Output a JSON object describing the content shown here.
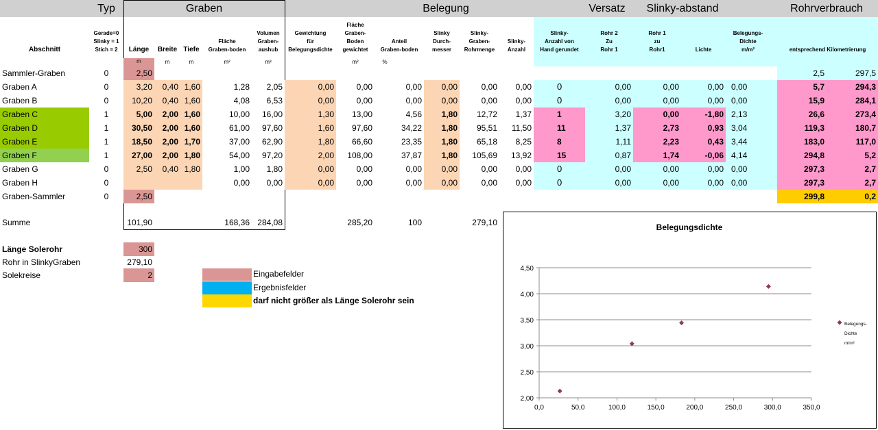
{
  "group_headers": {
    "typ": "Typ",
    "graben": "Graben",
    "belegung": "Belegung",
    "versatz": "Versatz",
    "slinky_abstand": "Slinky-abstand",
    "rohrverbrauch": "Rohrverbrauch"
  },
  "column_headers": {
    "abschnitt": "Abschnitt",
    "typ": [
      "Gerade=0",
      "Slinky = 1",
      "Stich = 2"
    ],
    "laenge": "Länge",
    "breite": "Breite",
    "tiefe": "Tiefe",
    "flaeche": [
      "Fläche",
      "Graben-boden"
    ],
    "volumen": [
      "Volumen",
      "Graben-",
      "aushub"
    ],
    "gewichtung": [
      "Gewichtung",
      "für",
      "Belegungsdichte"
    ],
    "flaeche_gew": [
      "Fläche",
      "Graben-",
      "Boden",
      "gewichtet"
    ],
    "anteil": [
      "Anteil",
      "Graben-boden"
    ],
    "durchmesser": [
      "Slinky",
      "Durch-",
      "messer"
    ],
    "rohrmenge": [
      "Slinky-",
      "Graben-",
      "Rohrmenge"
    ],
    "anzahl": [
      "Slinky-",
      "Anzahl"
    ],
    "hand": [
      "Slinky-",
      "Anzahl von",
      "Hand gerundet"
    ],
    "rohr2": [
      "Rohr 2",
      "Zu",
      "Rohr 1"
    ],
    "rohr1": [
      "Rohr 1",
      "zu",
      "Rohr1"
    ],
    "lichte": "Lichte",
    "dichte": [
      "Belegungs-",
      "Dichte",
      "m/m²"
    ],
    "kilometrierung": "entsprechend Kilometrierung"
  },
  "units": {
    "laenge": "m",
    "breite": "m",
    "tiefe": "m",
    "flaeche": "m²",
    "volumen": "m³",
    "flaeche_gew": "m²",
    "anteil": "%"
  },
  "rows": [
    {
      "name": "Sammler-Graben",
      "typ": "0",
      "laenge": "2,50",
      "breite": "",
      "tiefe": "",
      "flaeche": "",
      "volumen": "",
      "gew": "",
      "fgew": "",
      "anteil": "",
      "durch": "",
      "rohr": "",
      "anzahl": "",
      "hand": "",
      "r2": "",
      "r1": "",
      "lichte": "",
      "dichte": "",
      "km1": "2,5",
      "km2": "297,5"
    },
    {
      "name": "Graben A",
      "typ": "0",
      "laenge": "3,20",
      "breite": "0,40",
      "tiefe": "1,60",
      "flaeche": "1,28",
      "volumen": "2,05",
      "gew": "0,00",
      "fgew": "0,00",
      "anteil": "0,00",
      "durch": "0,00",
      "rohr": "0,00",
      "anzahl": "0,00",
      "hand": "0",
      "r2": "0,00",
      "r1": "0,00",
      "lichte": "0,00",
      "dichte": "0,00",
      "km1": "5,7",
      "km2": "294,3"
    },
    {
      "name": "Graben B",
      "typ": "0",
      "laenge": "10,20",
      "breite": "0,40",
      "tiefe": "1,60",
      "flaeche": "4,08",
      "volumen": "6,53",
      "gew": "0,00",
      "fgew": "0,00",
      "anteil": "0,00",
      "durch": "0,00",
      "rohr": "0,00",
      "anzahl": "0,00",
      "hand": "0",
      "r2": "0,00",
      "r1": "0,00",
      "lichte": "0,00",
      "dichte": "0,00",
      "km1": "15,9",
      "km2": "284,1"
    },
    {
      "name": "Graben C",
      "typ": "1",
      "laenge": "5,00",
      "breite": "2,00",
      "tiefe": "1,60",
      "flaeche": "10,00",
      "volumen": "16,00",
      "gew": "1,30",
      "fgew": "13,00",
      "anteil": "4,56",
      "durch": "1,80",
      "rohr": "12,72",
      "anzahl": "1,37",
      "hand": "1",
      "r2": "3,20",
      "r1": "0,00",
      "lichte": "-1,80",
      "dichte": "2,13",
      "km1": "26,6",
      "km2": "273,4"
    },
    {
      "name": "Graben D",
      "typ": "1",
      "laenge": "30,50",
      "breite": "2,00",
      "tiefe": "1,60",
      "flaeche": "61,00",
      "volumen": "97,60",
      "gew": "1,60",
      "fgew": "97,60",
      "anteil": "34,22",
      "durch": "1,80",
      "rohr": "95,51",
      "anzahl": "11,50",
      "hand": "11",
      "r2": "1,37",
      "r1": "2,73",
      "lichte": "0,93",
      "dichte": "3,04",
      "km1": "119,3",
      "km2": "180,7"
    },
    {
      "name": "Graben E",
      "typ": "1",
      "laenge": "18,50",
      "breite": "2,00",
      "tiefe": "1,70",
      "flaeche": "37,00",
      "volumen": "62,90",
      "gew": "1,80",
      "fgew": "66,60",
      "anteil": "23,35",
      "durch": "1,80",
      "rohr": "65,18",
      "anzahl": "8,25",
      "hand": "8",
      "r2": "1,11",
      "r1": "2,23",
      "lichte": "0,43",
      "dichte": "3,44",
      "km1": "183,0",
      "km2": "117,0"
    },
    {
      "name": "Graben F",
      "typ": "1",
      "laenge": "27,00",
      "breite": "2,00",
      "tiefe": "1,80",
      "flaeche": "54,00",
      "volumen": "97,20",
      "gew": "2,00",
      "fgew": "108,00",
      "anteil": "37,87",
      "durch": "1,80",
      "rohr": "105,69",
      "anzahl": "13,92",
      "hand": "15",
      "r2": "0,87",
      "r1": "1,74",
      "lichte": "-0,06",
      "dichte": "4,14",
      "km1": "294,8",
      "km2": "5,2"
    },
    {
      "name": "Graben G",
      "typ": "0",
      "laenge": "2,50",
      "breite": "0,40",
      "tiefe": "1,80",
      "flaeche": "1,00",
      "volumen": "1,80",
      "gew": "0,00",
      "fgew": "0,00",
      "anteil": "0,00",
      "durch": "0,00",
      "rohr": "0,00",
      "anzahl": "0,00",
      "hand": "0",
      "r2": "0,00",
      "r1": "0,00",
      "lichte": "0,00",
      "dichte": "0,00",
      "km1": "297,3",
      "km2": "2,7"
    },
    {
      "name": "Graben H",
      "typ": "0",
      "laenge": "",
      "breite": "",
      "tiefe": "",
      "flaeche": "0,00",
      "volumen": "0,00",
      "gew": "0,00",
      "fgew": "0,00",
      "anteil": "0,00",
      "durch": "0,00",
      "rohr": "0,00",
      "anzahl": "0,00",
      "hand": "0",
      "r2": "0,00",
      "r1": "0,00",
      "lichte": "0,00",
      "dichte": "0,00",
      "km1": "297,3",
      "km2": "2,7"
    },
    {
      "name": "Graben-Sammler",
      "typ": "0",
      "laenge": "2,50",
      "breite": "",
      "tiefe": "",
      "flaeche": "",
      "volumen": "",
      "gew": "",
      "fgew": "",
      "anteil": "",
      "durch": "",
      "rohr": "",
      "anzahl": "",
      "hand": "",
      "r2": "",
      "r1": "",
      "lichte": "",
      "dichte": "",
      "km1": "299,8",
      "km2": "0,2"
    }
  ],
  "summe": {
    "label": "Summe",
    "laenge": "101,90",
    "flaeche": "168,36",
    "volumen": "284,08",
    "fgew": "285,20",
    "anteil": "100",
    "rohr": "279,10"
  },
  "bottom": {
    "laenge_label": "Länge Solerohr",
    "laenge_value": "300",
    "rohr_label": "Rohr in SlinkyGraben",
    "rohr_value": "279,10",
    "sole_label": "Solekreise",
    "sole_value": "2"
  },
  "legend": {
    "eingabe": "Eingabefelder",
    "ergebnis": "Ergebnisfelder",
    "warn": "darf nicht größer als Länge Solerohr sein"
  },
  "colors": {
    "header_band": "#d0d0d0",
    "input": "#da9694",
    "peach": "#fcd5b4",
    "cyan": "#ccffff",
    "pink": "#ff99cc",
    "green": "#92d050",
    "green_dark": "#99cc00",
    "yellow": "#ffcc00",
    "legend_blue": "#00b0f0",
    "legend_yellow": "#ffd700",
    "marker": "#8b3a62"
  },
  "chart_data": {
    "type": "scatter",
    "title": "Belegungsdichte",
    "series": [
      {
        "name": "Belegungs-Dichte m/m²",
        "x": [
          26.6,
          119.3,
          183.0,
          294.8
        ],
        "y": [
          2.13,
          3.04,
          3.44,
          4.14
        ]
      }
    ],
    "legend_lines": [
      "Belegungs-",
      "Dichte",
      "m/m²"
    ],
    "xlim": [
      0,
      350
    ],
    "ylim": [
      2.0,
      4.5
    ],
    "x_ticks": [
      "0,0",
      "50,0",
      "100,0",
      "150,0",
      "200,0",
      "250,0",
      "300,0",
      "350,0"
    ],
    "y_ticks": [
      "2,00",
      "2,50",
      "3,00",
      "3,50",
      "4,00",
      "4,50"
    ],
    "grid": true,
    "legend_position": "right"
  }
}
